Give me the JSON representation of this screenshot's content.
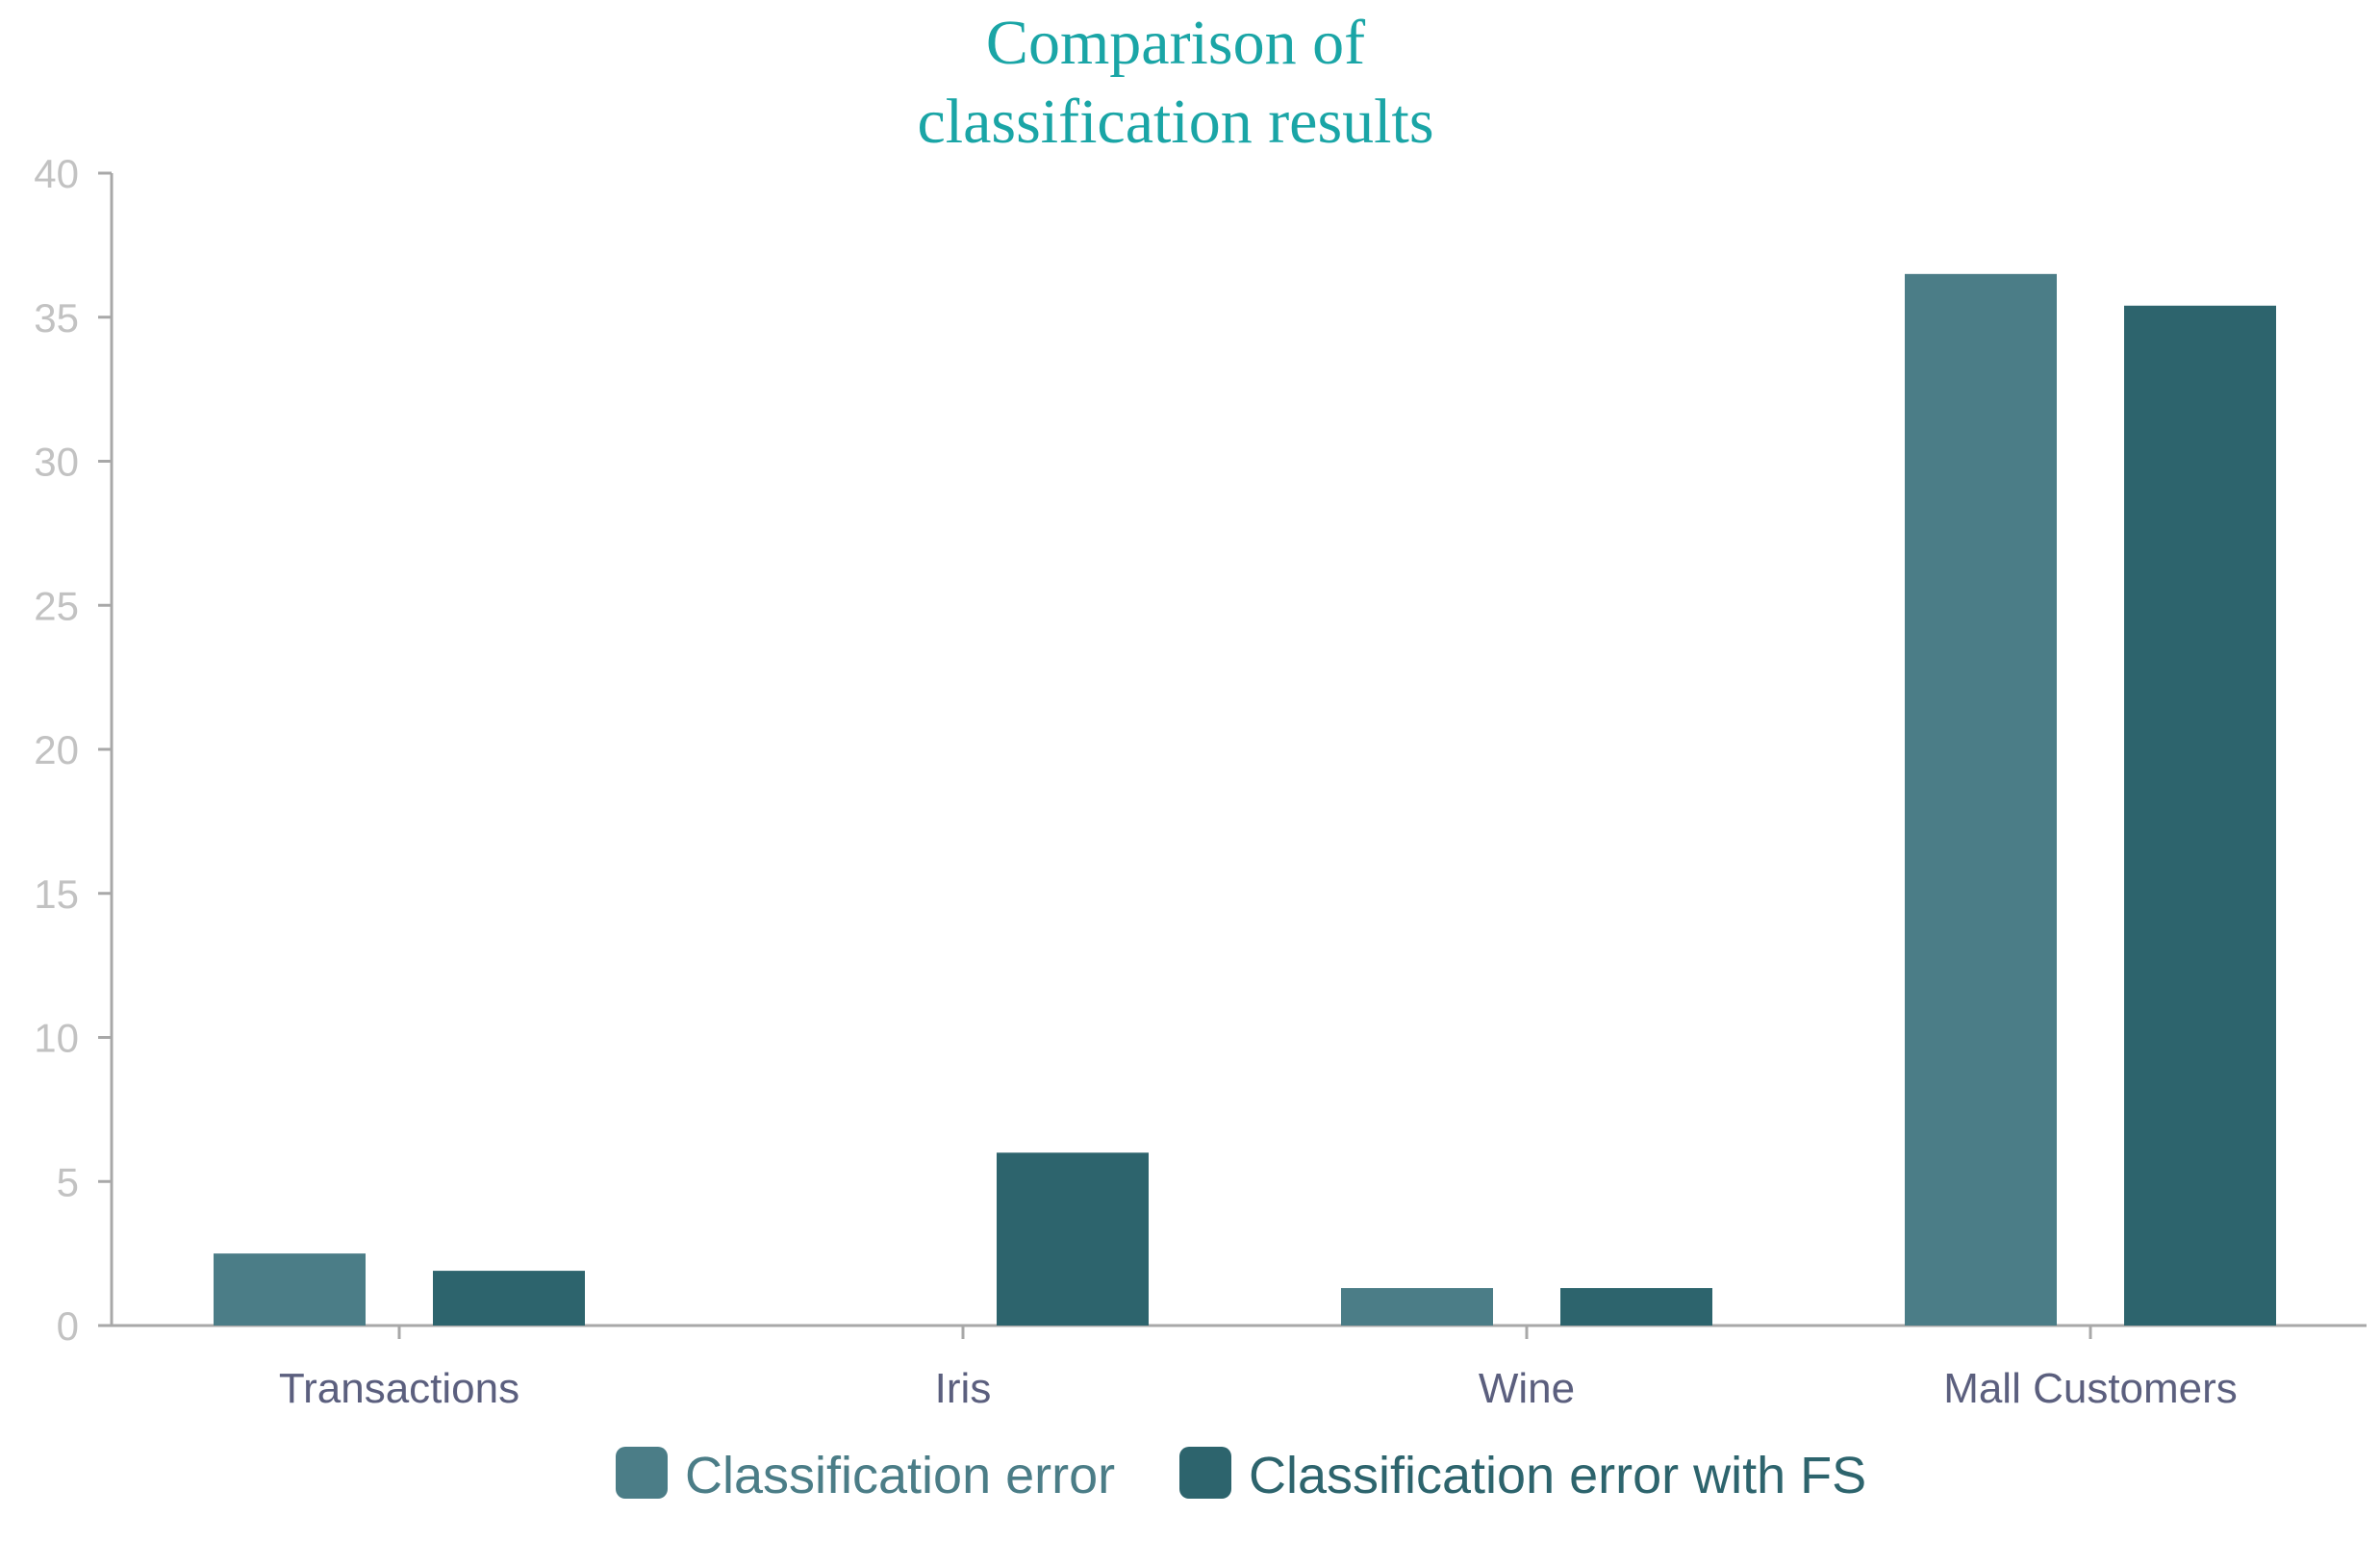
{
  "chart_data": {
    "type": "bar",
    "title_lines": [
      "Comparison of",
      "classification results"
    ],
    "categories": [
      "Transactions",
      "Iris",
      "Wine",
      "Mall Customers"
    ],
    "series": [
      {
        "name": "Classification error",
        "color": "#4b7d87",
        "values": [
          2.5,
          0,
          1.3,
          36.5
        ]
      },
      {
        "name": "Classification error with FS",
        "color": "#2d646d",
        "values": [
          1.9,
          6.0,
          1.3,
          35.4
        ]
      }
    ],
    "ylim": [
      0,
      40
    ],
    "yticks": [
      "0",
      "5",
      "10",
      "15",
      "20",
      "25",
      "30",
      "35",
      "40"
    ],
    "grid": false,
    "legend_position": "bottom-center",
    "colors": {
      "title": "#1aa5a6",
      "axis": "#a8a8a8",
      "tick_label": "#c2c2c2",
      "category_label": "#5b5f7e",
      "legend_text": "#4b7d87"
    }
  }
}
